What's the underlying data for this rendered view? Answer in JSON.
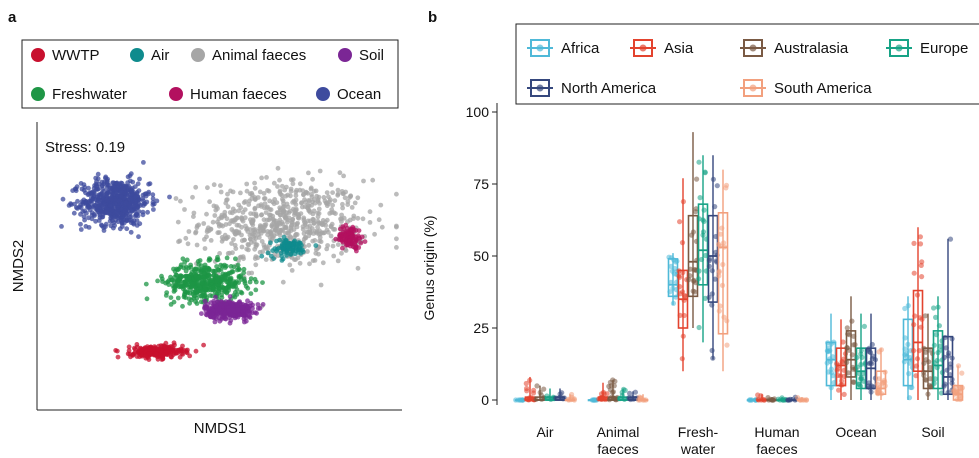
{
  "panel_a": {
    "label": "a",
    "legend": [
      {
        "name": "WWTP",
        "color": "#c8102e"
      },
      {
        "name": "Air",
        "color": "#0f8b8d"
      },
      {
        "name": "Animal faeces",
        "color": "#a6a6a6"
      },
      {
        "name": "Soil",
        "color": "#7b2695"
      },
      {
        "name": "Freshwater",
        "color": "#1e9646"
      },
      {
        "name": "Human faeces",
        "color": "#b3105f"
      },
      {
        "name": "Ocean",
        "color": "#3e4b9e"
      }
    ],
    "stress_text": "Stress: 0.19",
    "xlabel": "NMDS1",
    "ylabel": "NMDS2"
  },
  "panel_b": {
    "label": "b",
    "legend": [
      {
        "name": "Africa",
        "color": "#4fb9d8"
      },
      {
        "name": "Asia",
        "color": "#e3432e"
      },
      {
        "name": "Australasia",
        "color": "#7a5a44"
      },
      {
        "name": "Europe",
        "color": "#17a386"
      },
      {
        "name": "North America",
        "color": "#35477d"
      },
      {
        "name": "South America",
        "color": "#f2a07e"
      }
    ],
    "ylabel": "Genus origin (%)",
    "yticks": [
      "0",
      "25",
      "50",
      "75",
      "100"
    ],
    "categories": [
      "Air",
      "Animal faeces",
      "Fresh-water",
      "Human faeces",
      "Ocean",
      "Soil"
    ],
    "category_lines": [
      [
        "Air"
      ],
      [
        "Animal",
        "faeces"
      ],
      [
        "Fresh-",
        "water"
      ],
      [
        "Human",
        "faeces"
      ],
      [
        "Ocean"
      ],
      [
        "Soil"
      ]
    ]
  },
  "chart_data": [
    {
      "type": "scatter",
      "title": "",
      "xlabel": "NMDS1",
      "ylabel": "NMDS2",
      "annotation": "Stress: 0.19",
      "legend_position": "top",
      "series": [
        {
          "name": "WWTP",
          "center": [
            -0.35,
            -0.62
          ],
          "spread": [
            0.13,
            0.04
          ],
          "approx_points": 260
        },
        {
          "name": "Air",
          "center": [
            0.38,
            0.12
          ],
          "spread": [
            0.1,
            0.06
          ],
          "approx_points": 90
        },
        {
          "name": "Animal faeces",
          "center": [
            0.35,
            0.3
          ],
          "spread": [
            0.42,
            0.28
          ],
          "approx_points": 650
        },
        {
          "name": "Soil",
          "center": [
            0.05,
            -0.32
          ],
          "spread": [
            0.12,
            0.06
          ],
          "approx_points": 330
        },
        {
          "name": "Freshwater",
          "center": [
            -0.08,
            -0.12
          ],
          "spread": [
            0.2,
            0.12
          ],
          "approx_points": 460
        },
        {
          "name": "Human faeces",
          "center": [
            0.72,
            0.2
          ],
          "spread": [
            0.06,
            0.07
          ],
          "approx_points": 110
        },
        {
          "name": "Ocean",
          "center": [
            -0.58,
            0.45
          ],
          "spread": [
            0.17,
            0.15
          ],
          "approx_points": 620
        }
      ],
      "xlim": [
        -1,
        1
      ],
      "ylim": [
        -1,
        1
      ]
    },
    {
      "type": "box",
      "ylabel": "Genus origin (%)",
      "ylim": [
        0,
        100
      ],
      "yticks": [
        0,
        25,
        50,
        75,
        100
      ],
      "categories": [
        "Air",
        "Animal faeces",
        "Fresh-water",
        "Human faeces",
        "Ocean",
        "Soil"
      ],
      "legend_position": "top",
      "series": [
        {
          "name": "Africa",
          "boxes": [
            {
              "q1": 0,
              "median": 0,
              "q3": 0,
              "min": 0,
              "max": 0
            },
            {
              "q1": 0,
              "median": 0,
              "q3": 0,
              "min": 0,
              "max": 0
            },
            {
              "q1": 36,
              "median": 40,
              "q3": 49,
              "min": 33,
              "max": 51
            },
            {
              "q1": 0,
              "median": 0,
              "q3": 0,
              "min": 0,
              "max": 0
            },
            {
              "q1": 5,
              "median": 14,
              "q3": 20,
              "min": 0,
              "max": 30
            },
            {
              "q1": 5,
              "median": 14,
              "q3": 28,
              "min": 0,
              "max": 36
            }
          ]
        },
        {
          "name": "Asia",
          "boxes": [
            {
              "q1": 0,
              "median": 0,
              "q3": 1,
              "min": 0,
              "max": 8
            },
            {
              "q1": 0,
              "median": 0,
              "q3": 1,
              "min": 0,
              "max": 6
            },
            {
              "q1": 25,
              "median": 35,
              "q3": 45,
              "min": 10,
              "max": 77
            },
            {
              "q1": 0,
              "median": 0,
              "q3": 0,
              "min": 0,
              "max": 2
            },
            {
              "q1": 5,
              "median": 12,
              "q3": 18,
              "min": 0,
              "max": 28
            },
            {
              "q1": 10,
              "median": 20,
              "q3": 38,
              "min": 0,
              "max": 60
            }
          ]
        },
        {
          "name": "Australasia",
          "boxes": [
            {
              "q1": 0,
              "median": 0,
              "q3": 1,
              "min": 0,
              "max": 5
            },
            {
              "q1": 0,
              "median": 0,
              "q3": 1,
              "min": 0,
              "max": 7
            },
            {
              "q1": 36,
              "median": 48,
              "q3": 64,
              "min": 25,
              "max": 93
            },
            {
              "q1": 0,
              "median": 0,
              "q3": 0,
              "min": 0,
              "max": 1
            },
            {
              "q1": 8,
              "median": 14,
              "q3": 24,
              "min": 0,
              "max": 36
            },
            {
              "q1": 4,
              "median": 10,
              "q3": 18,
              "min": 0,
              "max": 30
            }
          ]
        },
        {
          "name": "Europe",
          "boxes": [
            {
              "q1": 0,
              "median": 0,
              "q3": 1,
              "min": 0,
              "max": 4
            },
            {
              "q1": 0,
              "median": 0,
              "q3": 1,
              "min": 0,
              "max": 4
            },
            {
              "q1": 40,
              "median": 52,
              "q3": 68,
              "min": 20,
              "max": 85
            },
            {
              "q1": 0,
              "median": 0,
              "q3": 0,
              "min": 0,
              "max": 1
            },
            {
              "q1": 4,
              "median": 10,
              "q3": 18,
              "min": 0,
              "max": 30
            },
            {
              "q1": 4,
              "median": 12,
              "q3": 24,
              "min": 0,
              "max": 36
            }
          ]
        },
        {
          "name": "North America",
          "boxes": [
            {
              "q1": 0,
              "median": 0,
              "q3": 1,
              "min": 0,
              "max": 4
            },
            {
              "q1": 0,
              "median": 0,
              "q3": 1,
              "min": 0,
              "max": 3
            },
            {
              "q1": 34,
              "median": 50,
              "q3": 64,
              "min": 14,
              "max": 85
            },
            {
              "q1": 0,
              "median": 0,
              "q3": 0,
              "min": 0,
              "max": 1
            },
            {
              "q1": 4,
              "median": 11,
              "q3": 18,
              "min": 0,
              "max": 30
            },
            {
              "q1": 2,
              "median": 8,
              "q3": 22,
              "min": 0,
              "max": 56
            }
          ]
        },
        {
          "name": "South America",
          "boxes": [
            {
              "q1": 0,
              "median": 0,
              "q3": 0,
              "min": 0,
              "max": 2
            },
            {
              "q1": 0,
              "median": 0,
              "q3": 0,
              "min": 0,
              "max": 2
            },
            {
              "q1": 23,
              "median": 53,
              "q3": 65,
              "min": 10,
              "max": 80
            },
            {
              "q1": 0,
              "median": 0,
              "q3": 0,
              "min": 0,
              "max": 1
            },
            {
              "q1": 2,
              "median": 4,
              "q3": 10,
              "min": 0,
              "max": 18
            },
            {
              "q1": 0,
              "median": 2,
              "q3": 5,
              "min": 0,
              "max": 12
            }
          ]
        }
      ]
    }
  ]
}
